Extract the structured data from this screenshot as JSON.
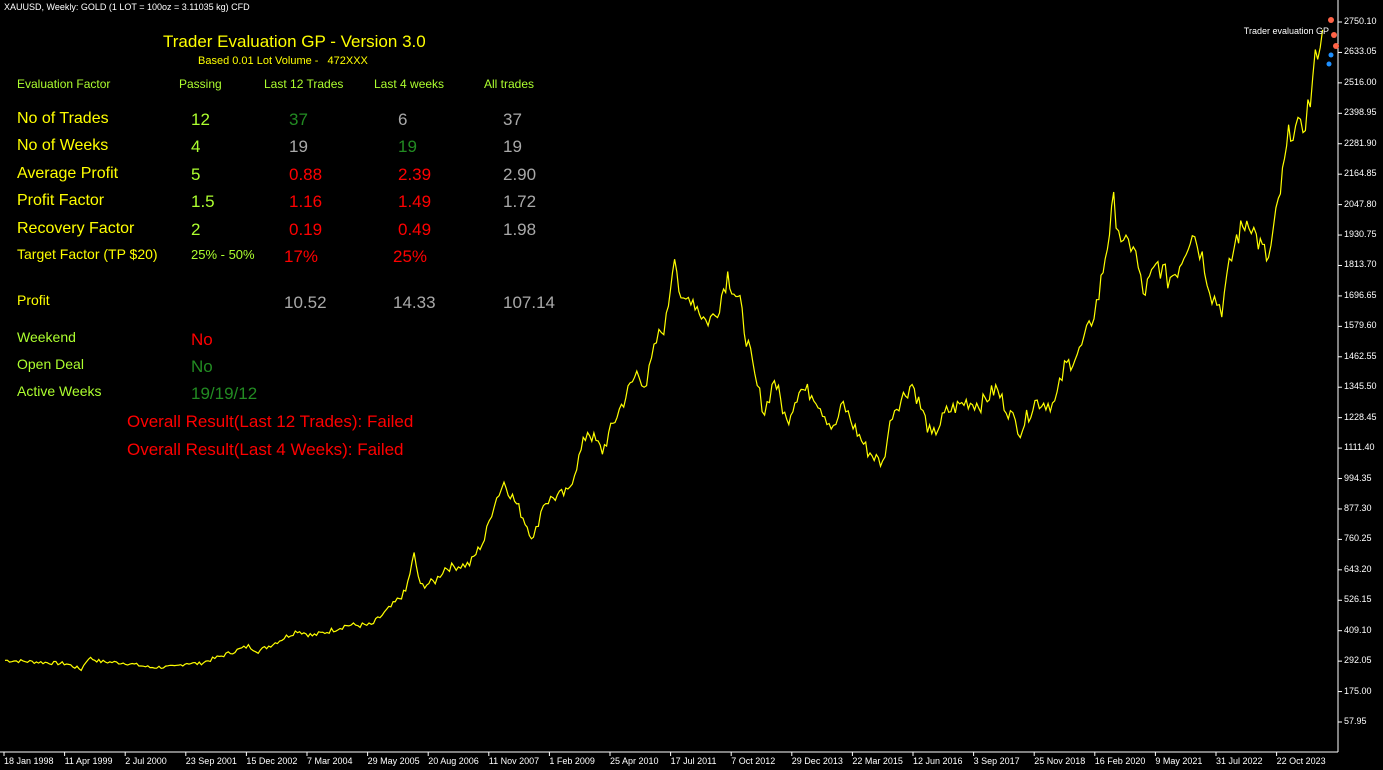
{
  "window": {
    "symbol_title": "XAUUSD, Weekly:  GOLD (1 LOT = 100oz = 3.11035 kg) CFD",
    "indicator_label": "Trader evaluation GP"
  },
  "colors": {
    "background": "#000000",
    "price_line": "#ffff00",
    "title": "#ffff00",
    "header": "#adff2f",
    "fail": "#ff0000",
    "pass": "#228b22",
    "neutral": "#a9a9a9",
    "axis": "#ffffff"
  },
  "panel": {
    "title": "Trader Evaluation GP - Version 3.0",
    "subtitle_prefix": "Based 0.01 Lot Volume -",
    "subtitle_account": "472XXX",
    "headers": {
      "factor": "Evaluation Factor",
      "passing": "Passing",
      "last12": "Last 12 Trades",
      "last4w": "Last 4 weeks",
      "all": "All trades"
    },
    "rows": [
      {
        "label": "No of Trades",
        "passing": "12",
        "last12": "37",
        "last4w": "6",
        "all": "37",
        "c12": "pass",
        "c4": "neutral"
      },
      {
        "label": "No of Weeks",
        "passing": "4",
        "last12": "19",
        "last4w": "19",
        "all": "19",
        "c12": "neutral",
        "c4": "pass"
      },
      {
        "label": "Average Profit",
        "passing": "5",
        "last12": "0.88",
        "last4w": "2.39",
        "all": "2.90",
        "c12": "fail",
        "c4": "fail"
      },
      {
        "label": "Profit Factor",
        "passing": "1.5",
        "last12": "1.16",
        "last4w": "1.49",
        "all": "1.72",
        "c12": "fail",
        "c4": "fail"
      },
      {
        "label": "Recovery Factor",
        "passing": "2",
        "last12": "0.19",
        "last4w": "0.49",
        "all": "1.98",
        "c12": "fail",
        "c4": "fail"
      }
    ],
    "target_factor": {
      "label": "Target Factor (TP $20)",
      "passing": "25% - 50%",
      "last12": "17%",
      "last4w": "25%"
    },
    "profit": {
      "label": "Profit",
      "last12": "10.52",
      "last4w": "14.33",
      "all": "107.14"
    },
    "weekend": {
      "label": "Weekend",
      "value": "No"
    },
    "open_deal": {
      "label": "Open Deal",
      "value": "No"
    },
    "active_weeks": {
      "label": "Active Weeks",
      "value": "19/19/12"
    },
    "overall_12": "Overall Result(Last 12 Trades): Failed",
    "overall_4w": "Overall Result(Last 4 Weeks): Failed"
  },
  "chart_data": {
    "type": "line",
    "y_ticks": [
      "2750.10",
      "2633.05",
      "2516.00",
      "2398.95",
      "2281.90",
      "2164.85",
      "2047.80",
      "1930.75",
      "1813.70",
      "1696.65",
      "1579.60",
      "1462.55",
      "1345.50",
      "1228.45",
      "1111.40",
      "994.35",
      "877.30",
      "760.25",
      "643.20",
      "526.15",
      "409.10",
      "292.05",
      "175.00",
      "57.95"
    ],
    "x_ticks": [
      "18 Jan 1998",
      "11 Apr 1999",
      "2 Jul 2000",
      "23 Sep 2001",
      "15 Dec 2002",
      "7 Mar 2004",
      "29 May 2005",
      "20 Aug 2006",
      "11 Nov 2007",
      "1 Feb 2009",
      "25 Apr 2010",
      "17 Jul 2011",
      "7 Oct 2012",
      "29 Dec 2013",
      "22 Mar 2015",
      "12 Jun 2016",
      "3 Sep 2017",
      "25 Nov 2018",
      "16 Feb 2020",
      "9 May 2021",
      "31 Jul 2022",
      "22 Oct 2023"
    ],
    "ylim": [
      57.95,
      2750.1
    ],
    "series": [
      {
        "values": [
          [
            1998.05,
            295
          ],
          [
            1998.6,
            290
          ],
          [
            1999.0,
            285
          ],
          [
            1999.3,
            282
          ],
          [
            1999.6,
            260
          ],
          [
            1999.75,
            305
          ],
          [
            2000.0,
            290
          ],
          [
            2000.5,
            285
          ],
          [
            2001.0,
            268
          ],
          [
            2001.5,
            270
          ],
          [
            2001.75,
            285
          ],
          [
            2002.0,
            282
          ],
          [
            2002.5,
            315
          ],
          [
            2003.0,
            350
          ],
          [
            2003.2,
            330
          ],
          [
            2003.5,
            358
          ],
          [
            2004.0,
            410
          ],
          [
            2004.3,
            390
          ],
          [
            2004.6,
            405
          ],
          [
            2005.0,
            430
          ],
          [
            2005.5,
            430
          ],
          [
            2005.9,
            500
          ],
          [
            2006.2,
            560
          ],
          [
            2006.37,
            700
          ],
          [
            2006.5,
            580
          ],
          [
            2006.8,
            600
          ],
          [
            2007.0,
            650
          ],
          [
            2007.5,
            665
          ],
          [
            2007.8,
            760
          ],
          [
            2008.0,
            900
          ],
          [
            2008.2,
            980
          ],
          [
            2008.5,
            880
          ],
          [
            2008.8,
            760
          ],
          [
            2009.0,
            900
          ],
          [
            2009.2,
            920
          ],
          [
            2009.5,
            940
          ],
          [
            2009.9,
            1180
          ],
          [
            2010.2,
            1100
          ],
          [
            2010.5,
            1240
          ],
          [
            2010.9,
            1400
          ],
          [
            2011.1,
            1360
          ],
          [
            2011.3,
            1520
          ],
          [
            2011.5,
            1600
          ],
          [
            2011.67,
            1880
          ],
          [
            2011.8,
            1650
          ],
          [
            2012.0,
            1700
          ],
          [
            2012.3,
            1600
          ],
          [
            2012.5,
            1620
          ],
          [
            2012.75,
            1780
          ],
          [
            2013.0,
            1660
          ],
          [
            2013.3,
            1380
          ],
          [
            2013.5,
            1250
          ],
          [
            2013.7,
            1380
          ],
          [
            2013.95,
            1210
          ],
          [
            2014.2,
            1340
          ],
          [
            2014.5,
            1320
          ],
          [
            2014.9,
            1180
          ],
          [
            2015.1,
            1280
          ],
          [
            2015.3,
            1200
          ],
          [
            2015.6,
            1100
          ],
          [
            2015.9,
            1050
          ],
          [
            2016.1,
            1250
          ],
          [
            2016.5,
            1360
          ],
          [
            2016.9,
            1150
          ],
          [
            2017.2,
            1250
          ],
          [
            2017.6,
            1290
          ],
          [
            2017.9,
            1280
          ],
          [
            2018.2,
            1340
          ],
          [
            2018.5,
            1240
          ],
          [
            2018.7,
            1180
          ],
          [
            2019.0,
            1290
          ],
          [
            2019.4,
            1280
          ],
          [
            2019.6,
            1420
          ],
          [
            2019.9,
            1480
          ],
          [
            2020.1,
            1570
          ],
          [
            2020.3,
            1700
          ],
          [
            2020.6,
            2050
          ],
          [
            2020.8,
            1880
          ],
          [
            2021.0,
            1900
          ],
          [
            2021.2,
            1700
          ],
          [
            2021.5,
            1820
          ],
          [
            2021.7,
            1760
          ],
          [
            2021.9,
            1800
          ],
          [
            2022.2,
            1950
          ],
          [
            2022.4,
            1850
          ],
          [
            2022.6,
            1700
          ],
          [
            2022.8,
            1650
          ],
          [
            2022.95,
            1800
          ],
          [
            2023.1,
            1920
          ],
          [
            2023.35,
            2000
          ],
          [
            2023.5,
            1920
          ],
          [
            2023.75,
            1830
          ],
          [
            2023.95,
            2050
          ],
          [
            2024.2,
            2350
          ],
          [
            2024.4,
            2320
          ],
          [
            2024.6,
            2450
          ],
          [
            2024.75,
            2660
          ],
          [
            2024.85,
            2720
          ]
        ]
      }
    ],
    "xlim": [
      1998.05,
      2025.0
    ]
  }
}
